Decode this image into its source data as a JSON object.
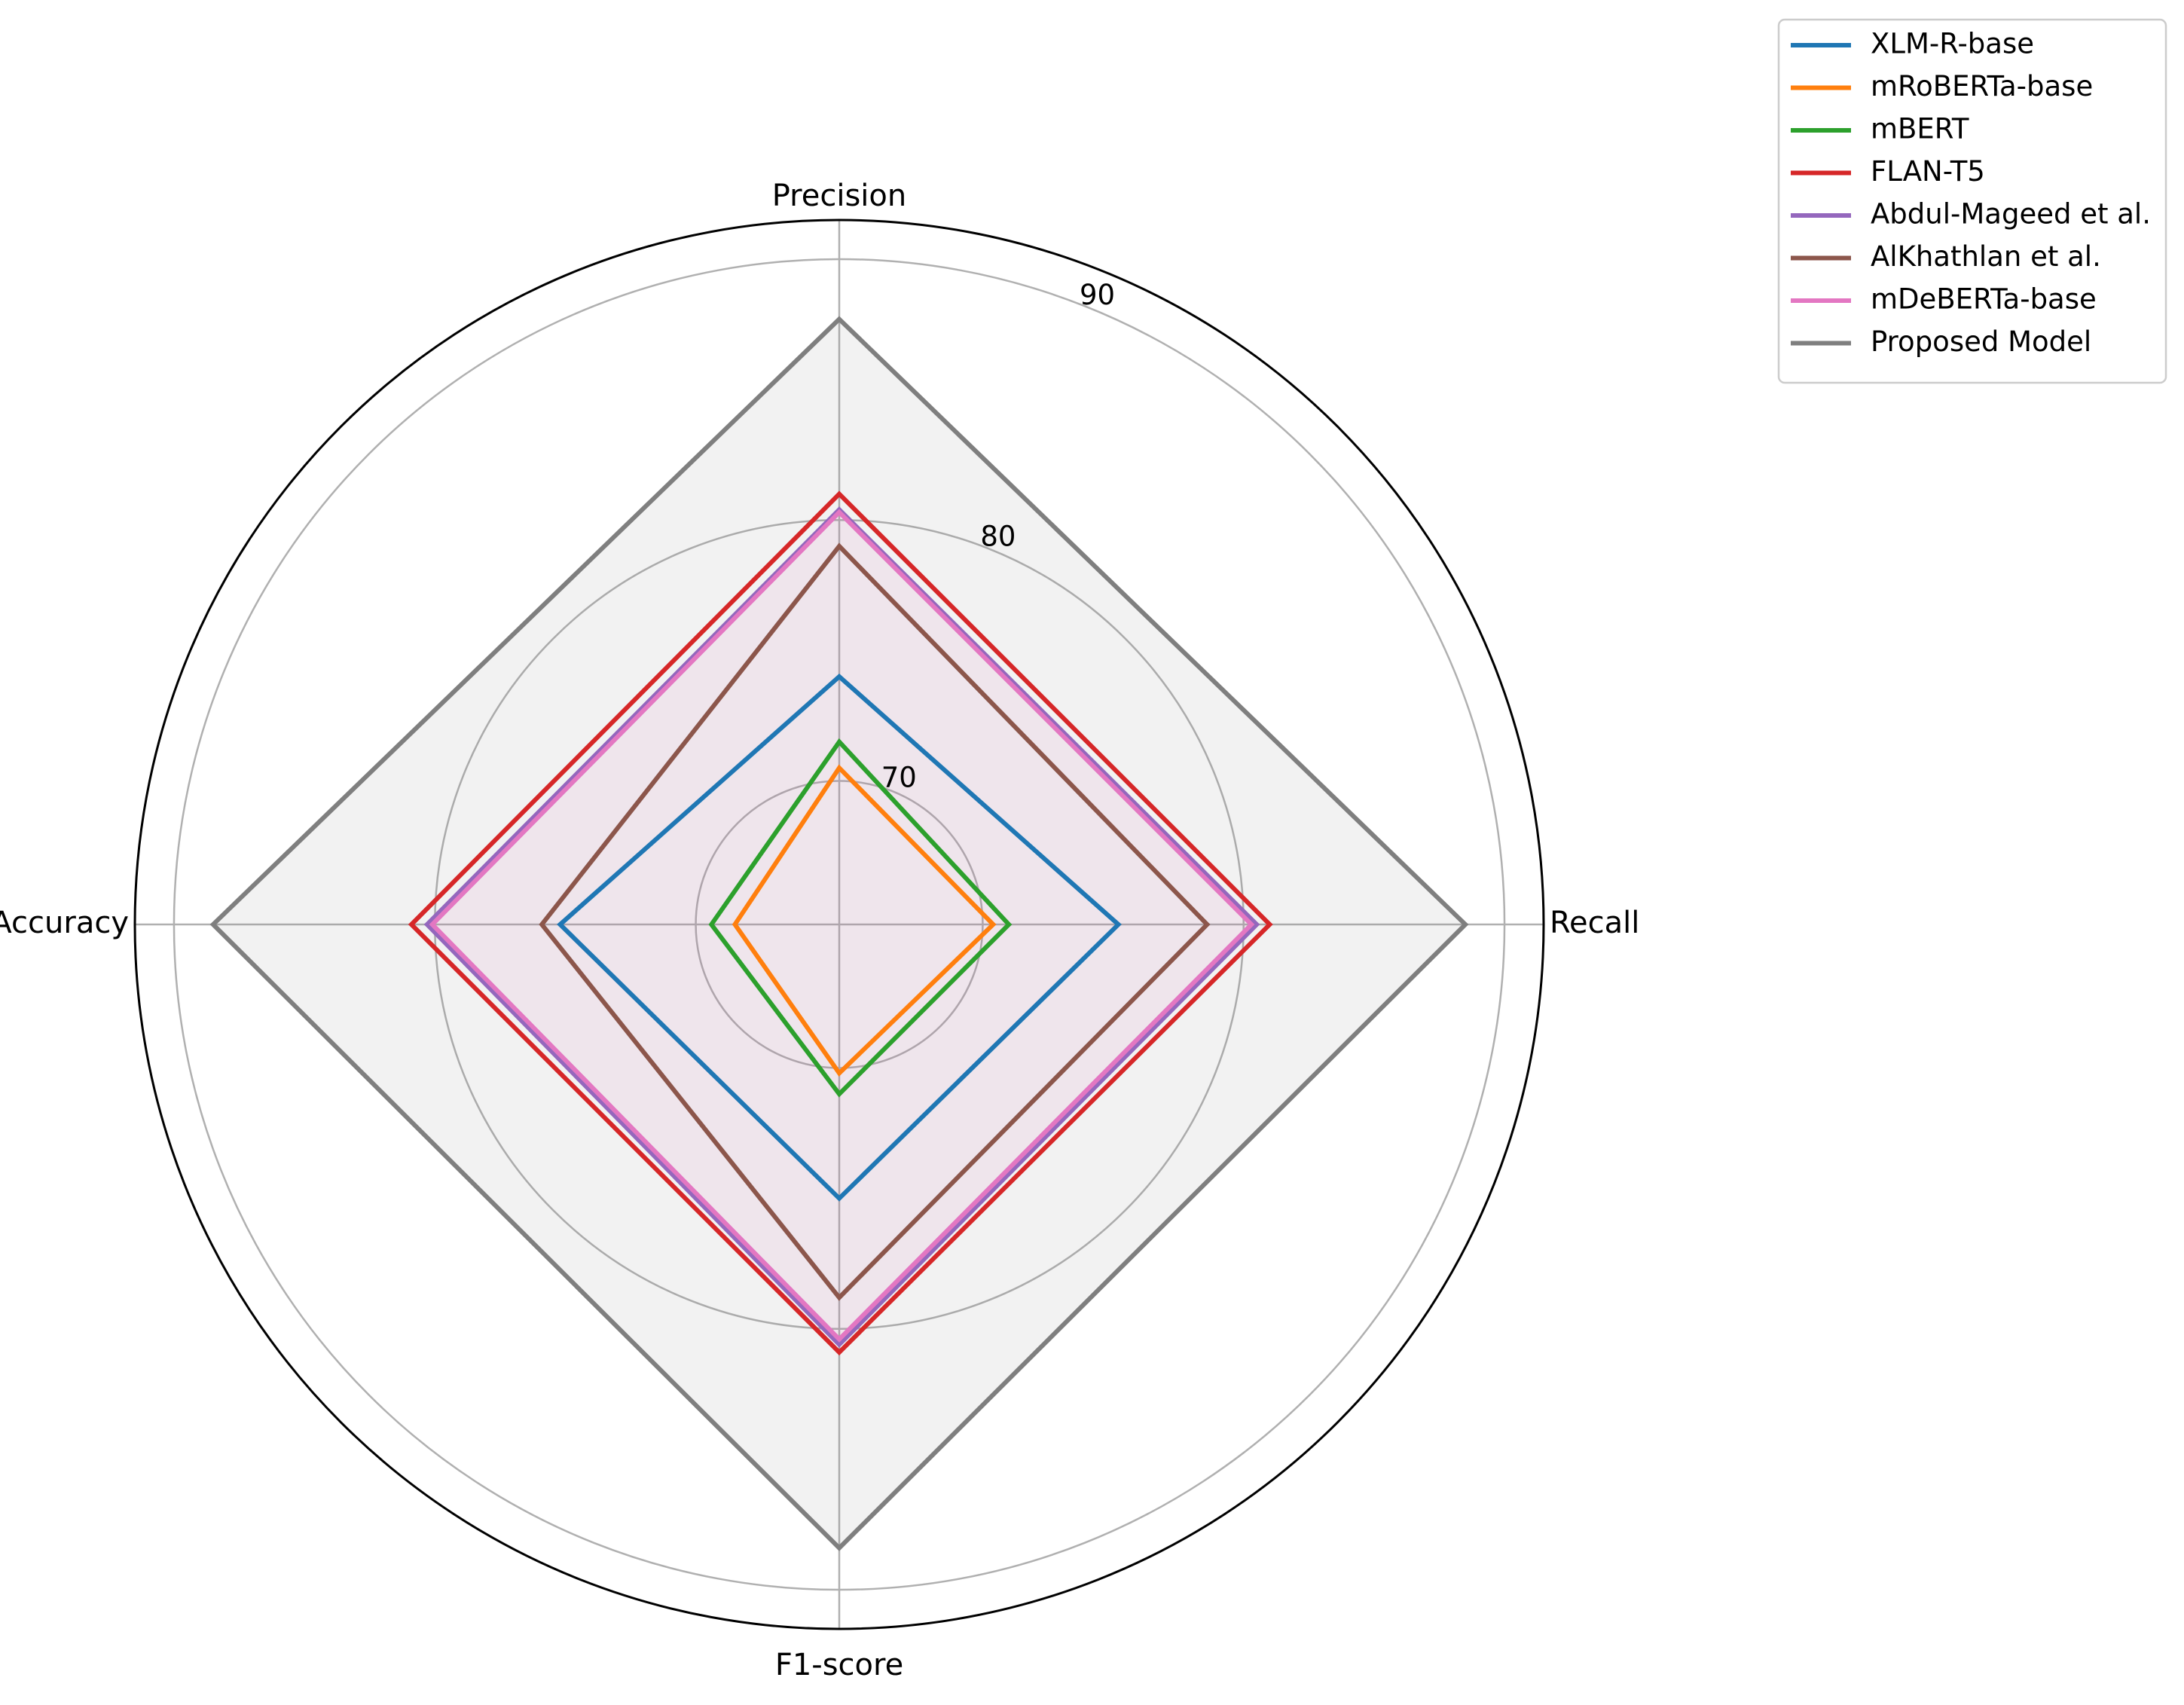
{
  "chart_data": {
    "type": "radar",
    "axes": [
      "Precision",
      "Recall",
      "F1-score",
      "Accuracy"
    ],
    "radial_ticks": [
      "70",
      "80",
      "90"
    ],
    "radial_tick_values": [
      70,
      80,
      90
    ],
    "rlim": [
      64.5,
      91.5
    ],
    "grid": true,
    "legend_position": "upper-right",
    "series": [
      {
        "name": "XLM-R-base",
        "color": "#1f77b4",
        "values": [
          74.0,
          75.2,
          75.0,
          75.2
        ],
        "fill": false
      },
      {
        "name": "mRoBERTa-base",
        "color": "#ff7f0e",
        "values": [
          70.5,
          70.4,
          70.2,
          68.5
        ],
        "fill": false
      },
      {
        "name": "mBERT",
        "color": "#2ca02c",
        "values": [
          71.5,
          71.0,
          71.0,
          69.4
        ],
        "fill": false
      },
      {
        "name": "FLAN-T5",
        "color": "#d62728",
        "values": [
          81.0,
          81.0,
          80.9,
          80.9
        ],
        "fill": false
      },
      {
        "name": "Abdul-Mageed et al.",
        "color": "#9467bd",
        "values": [
          80.4,
          80.5,
          80.6,
          80.3
        ],
        "fill": false
      },
      {
        "name": "AlKhathlan et al.",
        "color": "#8c564b",
        "values": [
          79.0,
          78.6,
          78.8,
          75.9
        ],
        "fill": false
      },
      {
        "name": "mDeBERTa-base",
        "color": "#e377c2",
        "values": [
          80.3,
          80.3,
          80.4,
          80.1
        ],
        "fill": true
      },
      {
        "name": "Proposed Model",
        "color": "#7f7f7f",
        "values": [
          87.7,
          88.5,
          88.4,
          88.5
        ],
        "fill": true
      }
    ]
  }
}
